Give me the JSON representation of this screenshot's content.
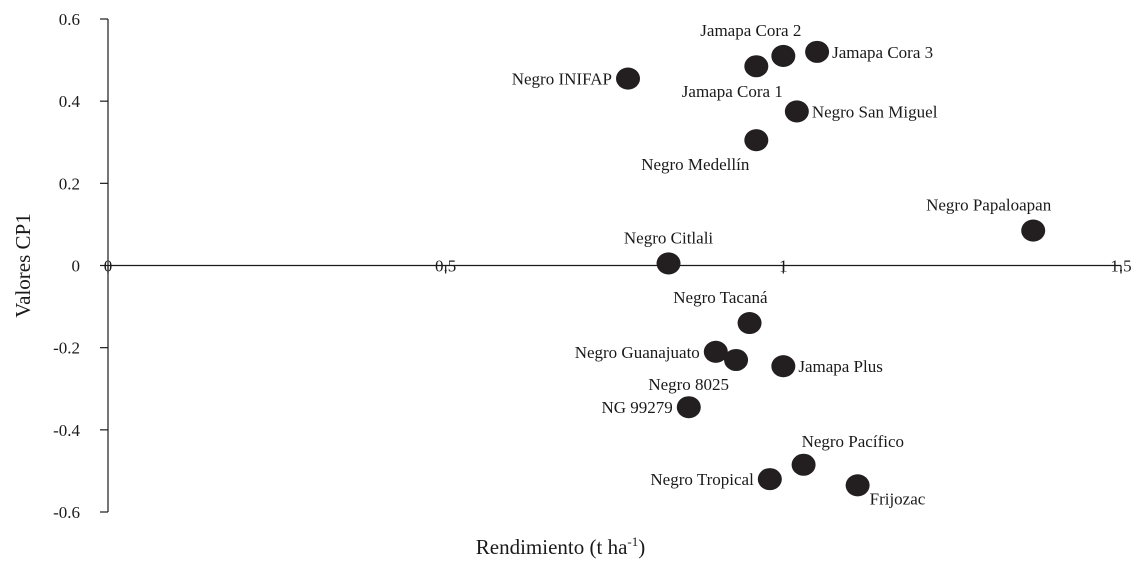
{
  "chart_data": {
    "type": "scatter",
    "xlabel": "Rendimiento (t ha",
    "xlabel_sup": "-1",
    "xlabel_close": ")",
    "ylabel": "Valores CP1",
    "xlim": [
      0,
      1.5
    ],
    "ylim": [
      -0.6,
      0.6
    ],
    "x_ticks": [
      0,
      0.5,
      1,
      1.5
    ],
    "x_tick_labels": [
      "0",
      "0.5",
      "1",
      "1.5"
    ],
    "y_ticks": [
      0.6,
      0.4,
      0.2,
      0,
      -0.2,
      -0.4,
      -0.6
    ],
    "y_tick_labels": [
      "0.6",
      "0.4",
      "0.2",
      "0",
      "-0.2",
      "-0.4",
      "-0.6"
    ],
    "grid": false,
    "legend": "none",
    "marker_color": "#231f20",
    "points": [
      {
        "label": "Jamapa Cora 2",
        "x": 1.0,
        "y": 0.51,
        "label_side": "above-left"
      },
      {
        "label": "Jamapa Cora 3",
        "x": 1.05,
        "y": 0.52,
        "label_side": "right"
      },
      {
        "label": "Negro INIFAP",
        "x": 0.77,
        "y": 0.455,
        "label_side": "left"
      },
      {
        "label": "Jamapa Cora 1",
        "x": 0.96,
        "y": 0.485,
        "label_side": "below"
      },
      {
        "label": "Negro San Miguel",
        "x": 1.02,
        "y": 0.375,
        "label_side": "right"
      },
      {
        "label": "Negro Medellín",
        "x": 0.96,
        "y": 0.305,
        "label_side": "below-left"
      },
      {
        "label": "Negro Papaloapan",
        "x": 1.37,
        "y": 0.085,
        "label_side": "above-left"
      },
      {
        "label": "Negro Citlali",
        "x": 0.83,
        "y": 0.005,
        "label_side": "above"
      },
      {
        "label": "Negro Tacaná",
        "x": 0.95,
        "y": -0.14,
        "label_side": "above-left"
      },
      {
        "label": "Negro Guanajuato",
        "x": 0.9,
        "y": -0.21,
        "label_side": "left"
      },
      {
        "label": "Negro 8025",
        "x": 0.93,
        "y": -0.23,
        "label_side": "below-left"
      },
      {
        "label": "Jamapa Plus",
        "x": 1.0,
        "y": -0.245,
        "label_side": "right"
      },
      {
        "label": "NG 99279",
        "x": 0.86,
        "y": -0.345,
        "label_side": "left"
      },
      {
        "label": "Negro Pacífico",
        "x": 1.03,
        "y": -0.485,
        "label_side": "above-right"
      },
      {
        "label": "Negro Tropical",
        "x": 0.98,
        "y": -0.52,
        "label_side": "left"
      },
      {
        "label": "Frijozac",
        "x": 1.11,
        "y": -0.535,
        "label_side": "below-right"
      }
    ]
  }
}
